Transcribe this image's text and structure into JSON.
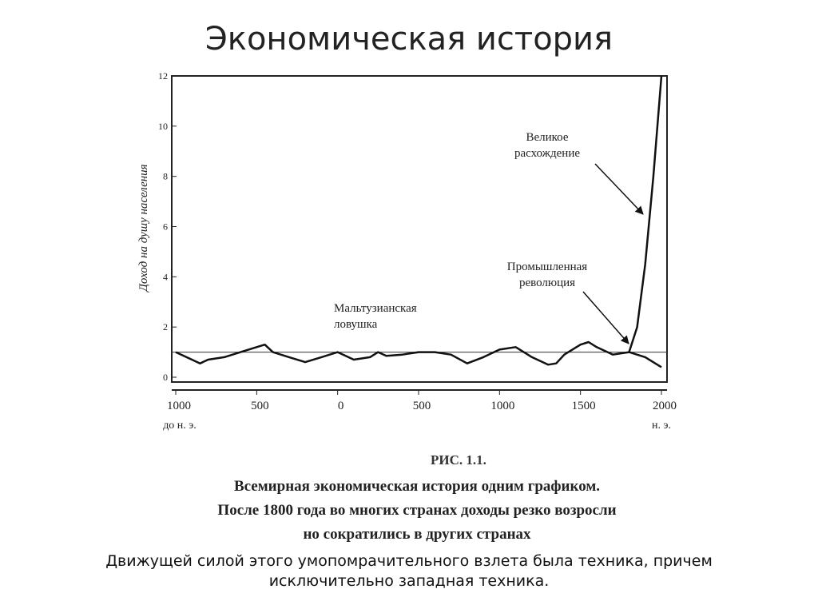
{
  "slide": {
    "title": "Экономическая история",
    "caption": [
      "РИС. 1.1.",
      "Всемирная экономическая история одним графиком.",
      "После 1800 года во многих странах доходы резко возросли",
      "но сократились в других странах"
    ],
    "body": [
      "Движущей силой этого умопомрачительного взлета была техника, причем",
      "исключительно западная техника."
    ]
  },
  "chart_data": {
    "type": "line",
    "ylabel": "Доход на душу населения",
    "xlim": [
      -1000,
      2000
    ],
    "ylim": [
      0,
      12
    ],
    "xticks": [
      {
        "value": -1000,
        "label": "1000"
      },
      {
        "value": -500,
        "label": "500"
      },
      0,
      500,
      1000,
      1500,
      2000
    ],
    "x_era_labels": [
      "до н. э.",
      "н. э."
    ],
    "yticks": [
      0,
      2,
      4,
      6,
      8,
      10,
      12
    ],
    "reference_line": 1,
    "series": [
      {
        "color": "#111111",
        "x": [
          -1000,
          -900,
          -850,
          -800,
          -700,
          -600,
          -500,
          -450,
          -400,
          -300,
          -200,
          -100,
          0,
          100,
          200,
          250,
          300,
          400,
          500,
          600,
          700,
          800,
          900,
          1000,
          1100,
          1150,
          1200,
          1300,
          1350,
          1400,
          1500,
          1550,
          1600,
          1700,
          1800,
          1850,
          1900,
          1950,
          2000
        ],
        "values": [
          1.0,
          0.7,
          0.55,
          0.7,
          0.8,
          1.0,
          1.2,
          1.3,
          1.0,
          0.8,
          0.6,
          0.8,
          1.0,
          0.7,
          0.8,
          1.0,
          0.85,
          0.9,
          1.0,
          1.0,
          0.9,
          0.55,
          0.8,
          1.1,
          1.2,
          1.0,
          0.8,
          0.5,
          0.55,
          0.9,
          1.3,
          1.4,
          1.2,
          0.9,
          1.0,
          2.0,
          4.5,
          8,
          12
        ]
      },
      {
        "color": "#111111",
        "x": [
          1800,
          1900,
          2000
        ],
        "values": [
          1.0,
          0.8,
          0.4
        ]
      }
    ],
    "annotations": [
      {
        "lines": [
          "Мальтузианская",
          "ловушка"
        ]
      },
      {
        "lines": [
          "Промышленная",
          "революция"
        ]
      },
      {
        "lines": [
          "Великое",
          "расхождение"
        ]
      }
    ]
  }
}
